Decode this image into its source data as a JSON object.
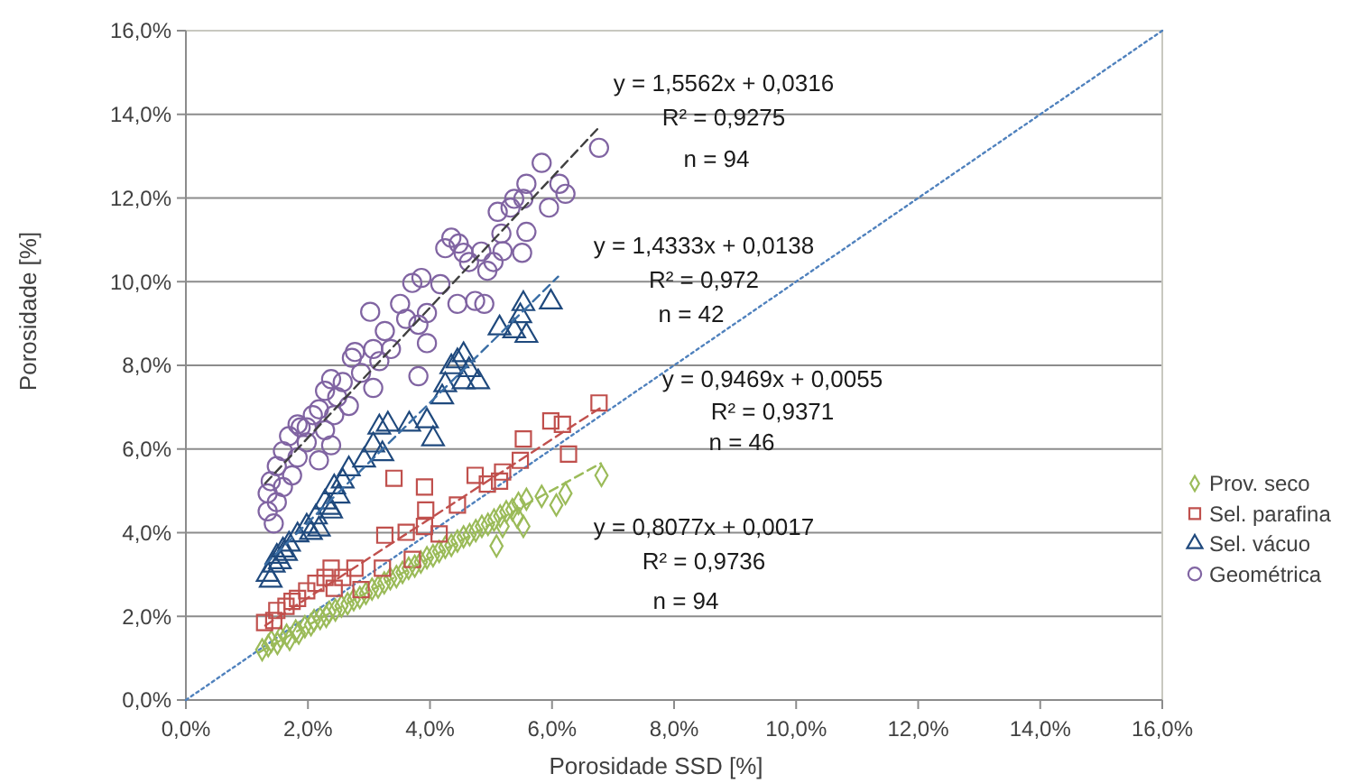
{
  "chart_data": {
    "type": "scatter",
    "xlabel": "Porosidade SSD [%]",
    "ylabel": "Porosidade [%]",
    "xlim": [
      0,
      16
    ],
    "ylim": [
      0,
      16
    ],
    "xticks": [
      {
        "value": 0,
        "label": "0,0%"
      },
      {
        "value": 2,
        "label": "2,0%"
      },
      {
        "value": 4,
        "label": "4,0%"
      },
      {
        "value": 6,
        "label": "6,0%"
      },
      {
        "value": 8,
        "label": "8,0%"
      },
      {
        "value": 10,
        "label": "10,0%"
      },
      {
        "value": 12,
        "label": "12,0%"
      },
      {
        "value": 14,
        "label": "14,0%"
      },
      {
        "value": 16,
        "label": "16,0%"
      }
    ],
    "yticks": [
      {
        "value": 0,
        "label": "0,0%"
      },
      {
        "value": 2,
        "label": "2,0%"
      },
      {
        "value": 4,
        "label": "4,0%"
      },
      {
        "value": 6,
        "label": "6,0%"
      },
      {
        "value": 8,
        "label": "8,0%"
      },
      {
        "value": 10,
        "label": "10,0%"
      },
      {
        "value": 12,
        "label": "12,0%"
      },
      {
        "value": 14,
        "label": "14,0%"
      },
      {
        "value": 16,
        "label": "16,0%"
      }
    ],
    "grid": "y",
    "legend": "right",
    "annotations": [
      "y = 1,5562x + 0,0316",
      "R² = 0,9275",
      "n = 94",
      "y = 1,4333x + 0,0138",
      "R² = 0,972",
      "n = 42",
      "y = 0,9469x + 0,0055",
      "R² = 0,9371",
      "n = 46",
      "y = 0,8077x + 0,0017",
      "R² = 0,9736",
      "n = 94"
    ],
    "series": [
      {
        "type": "line",
        "color": "#4f81bd",
        "line_style": "dotted",
        "x": [
          0,
          16
        ],
        "values": [
          0,
          16
        ]
      },
      {
        "name": "Prov. seco",
        "color": "#9bbb59",
        "marker": "diamond",
        "x": [
          1.25,
          1.35,
          1.4,
          1.5,
          1.55,
          1.65,
          1.7,
          1.8,
          1.85,
          1.95,
          2.05,
          2.1,
          2.2,
          2.3,
          2.35,
          2.45,
          2.55,
          2.65,
          2.75,
          2.85,
          2.95,
          3.05,
          3.15,
          3.25,
          3.35,
          3.45,
          3.55,
          3.65,
          3.75,
          3.85,
          3.95,
          4.05,
          4.15,
          4.25,
          4.35,
          4.45,
          4.55,
          4.65,
          4.75,
          4.85,
          4.95,
          5.05,
          5.15,
          5.25,
          5.35,
          5.45,
          6.81,
          6.22,
          6.07,
          5.83,
          5.58,
          5.43,
          5.19,
          5.09,
          5.53
        ],
        "values": [
          1.2,
          1.3,
          1.4,
          1.35,
          1.5,
          1.55,
          1.45,
          1.65,
          1.6,
          1.75,
          1.8,
          1.9,
          1.95,
          2.0,
          2.1,
          2.15,
          2.25,
          2.3,
          2.4,
          2.45,
          2.55,
          2.65,
          2.7,
          2.8,
          2.9,
          2.95,
          3.05,
          3.15,
          3.2,
          3.3,
          3.4,
          3.45,
          3.55,
          3.65,
          3.7,
          3.8,
          3.9,
          3.95,
          4.05,
          4.15,
          4.2,
          4.3,
          4.4,
          4.5,
          4.55,
          4.7,
          5.37,
          4.94,
          4.66,
          4.87,
          4.8,
          4.37,
          4.15,
          3.68,
          4.15
        ]
      },
      {
        "name": "Sel. parafina",
        "color": "#c0504d",
        "marker": "square",
        "x": [
          6.77,
          5.98,
          6.17,
          6.27,
          5.53,
          5.48,
          5.14,
          4.94,
          4.74,
          5.19,
          4.45,
          3.91,
          3.93,
          3.41,
          3.91,
          4.15,
          3.61,
          3.26,
          3.71,
          3.22,
          2.77,
          2.38,
          2.28,
          2.13,
          2.43,
          1.98,
          1.83,
          1.74,
          1.64,
          1.49,
          1.44,
          1.29,
          2.87,
          2.57
        ],
        "values": [
          7.1,
          6.67,
          6.59,
          5.88,
          6.24,
          5.73,
          5.23,
          5.16,
          5.37,
          5.45,
          4.66,
          5.09,
          4.54,
          5.3,
          4.15,
          3.97,
          4.01,
          3.94,
          3.36,
          3.15,
          3.15,
          3.15,
          2.93,
          2.79,
          2.67,
          2.61,
          2.43,
          2.36,
          2.24,
          2.14,
          1.9,
          1.85,
          2.64,
          2.93
        ]
      },
      {
        "name": "Sel. vácuo",
        "color": "#1f497d",
        "marker": "triangle",
        "x": [
          5.98,
          5.53,
          5.48,
          5.14,
          5.38,
          5.58,
          4.55,
          4.45,
          4.35,
          4.64,
          4.79,
          4.25,
          4.55,
          4.2,
          3.95,
          3.66,
          3.31,
          3.17,
          4.05,
          3.07,
          3.22,
          2.92,
          2.67,
          2.57,
          2.43,
          2.5,
          2.28,
          2.38,
          2.13,
          1.98,
          2.18,
          1.83,
          1.69,
          1.59,
          1.49,
          1.44,
          1.34,
          1.39,
          1.54,
          1.64,
          2.05,
          2.35
        ],
        "values": [
          9.51,
          9.47,
          9.18,
          8.89,
          8.82,
          8.71,
          8.25,
          8.1,
          7.96,
          7.89,
          7.6,
          7.53,
          7.6,
          7.24,
          6.67,
          6.59,
          6.59,
          6.52,
          6.24,
          6.09,
          5.88,
          5.73,
          5.52,
          5.23,
          5.09,
          4.87,
          4.73,
          4.51,
          4.37,
          4.15,
          4.08,
          3.94,
          3.72,
          3.58,
          3.43,
          3.22,
          3.0,
          2.86,
          3.3,
          3.5,
          4.0,
          4.6
        ]
      },
      {
        "name": "Geométrica",
        "color": "#8064a2",
        "marker": "circle",
        "x": [
          6.77,
          5.83,
          5.58,
          6.12,
          6.22,
          5.38,
          5.53,
          5.32,
          5.11,
          5.95,
          5.58,
          5.17,
          4.35,
          4.47,
          4.25,
          4.55,
          4.84,
          5.19,
          5.51,
          5.04,
          4.94,
          4.64,
          3.86,
          3.71,
          4.17,
          4.45,
          4.74,
          4.89,
          3.02,
          3.51,
          3.61,
          3.95,
          3.81,
          3.26,
          3.95,
          2.77,
          3.07,
          3.36,
          2.72,
          3.17,
          3.81,
          2.38,
          2.57,
          2.87,
          3.07,
          2.28,
          2.48,
          2.67,
          2.18,
          2.43,
          2.08,
          1.83,
          1.98,
          1.88,
          2.28,
          1.69,
          1.98,
          2.38,
          1.59,
          1.83,
          2.18,
          1.49,
          1.74,
          1.39,
          1.59,
          1.34,
          1.49,
          1.34,
          1.44
        ],
        "values": [
          13.2,
          12.84,
          12.34,
          12.34,
          12.1,
          11.98,
          11.98,
          11.77,
          11.67,
          11.77,
          11.19,
          11.15,
          11.05,
          10.91,
          10.8,
          10.69,
          10.72,
          10.73,
          10.69,
          10.47,
          10.26,
          10.47,
          10.09,
          9.97,
          9.94,
          9.47,
          9.54,
          9.47,
          9.28,
          9.47,
          9.11,
          9.25,
          8.97,
          8.82,
          8.53,
          8.32,
          8.39,
          8.39,
          8.18,
          8.1,
          7.74,
          7.67,
          7.6,
          7.82,
          7.46,
          7.39,
          7.24,
          7.03,
          6.95,
          6.81,
          6.81,
          6.59,
          6.52,
          6.52,
          6.45,
          6.31,
          6.16,
          6.09,
          5.95,
          5.8,
          5.73,
          5.59,
          5.37,
          5.23,
          5.09,
          4.94,
          4.73,
          4.51,
          4.22
        ]
      },
      {
        "type": "line",
        "color": "#9bbb59",
        "line_style": "dashed",
        "x": [
          1.2,
          6.8
        ],
        "values": [
          1.14,
          5.66
        ]
      },
      {
        "type": "line",
        "color": "#c0504d",
        "line_style": "dashed",
        "x": [
          1.3,
          6.8
        ],
        "values": [
          1.78,
          6.99
        ]
      },
      {
        "type": "line",
        "color": "#3a6ea5",
        "line_style": "dashed",
        "x": [
          1.3,
          6.1
        ],
        "values": [
          3.24,
          10.12
        ]
      },
      {
        "type": "line",
        "color": "#404040",
        "line_style": "dashed",
        "x": [
          1.3,
          6.77
        ],
        "values": [
          5.18,
          13.69
        ]
      }
    ]
  }
}
